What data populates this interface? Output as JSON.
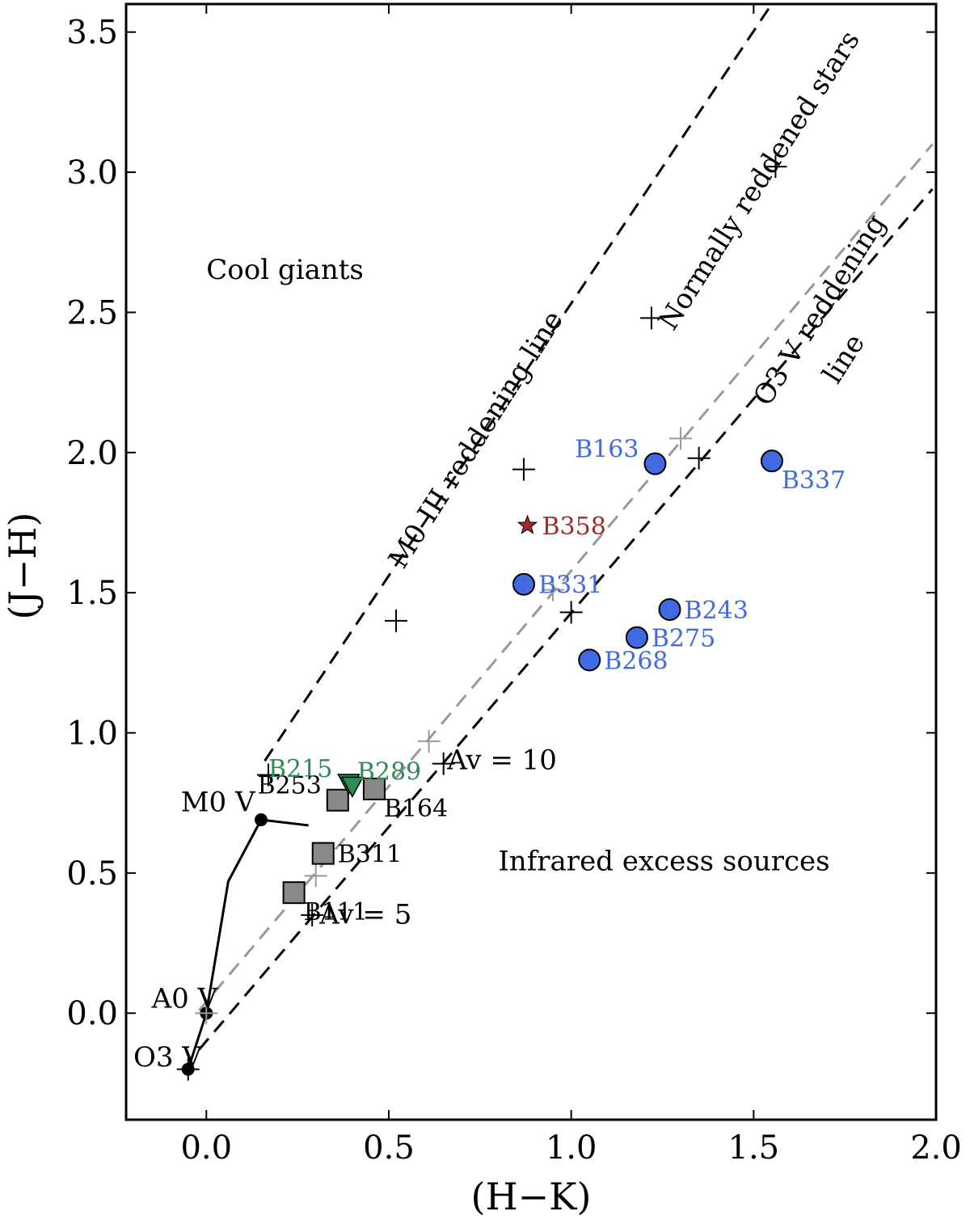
{
  "chart_data": {
    "type": "scatter",
    "title": "",
    "xlabel": "(H−K)",
    "ylabel": "(J−H)",
    "xlim": [
      -0.22,
      2.0
    ],
    "ylim": [
      -0.38,
      3.6
    ],
    "xticks": [
      0.0,
      0.5,
      1.0,
      1.5,
      2.0
    ],
    "xtick_labels": [
      "0.0",
      "0.5",
      "1.0",
      "1.5",
      "2.0"
    ],
    "yticks": [
      0.0,
      0.5,
      1.0,
      1.5,
      2.0,
      2.5,
      3.0,
      3.5
    ],
    "ytick_labels": [
      "0.0",
      "0.5",
      "1.0",
      "1.5",
      "2.0",
      "2.5",
      "3.0",
      "3.5"
    ],
    "colors": {
      "blue": "#4169e1",
      "gray": "#888888",
      "green": "#2e8b57",
      "red": "#a52a2a",
      "grayline": "#999999"
    },
    "main_sequence": [
      [
        -0.05,
        -0.2
      ],
      [
        0.0,
        0.0
      ],
      [
        0.06,
        0.47
      ],
      [
        0.15,
        0.69
      ],
      [
        0.28,
        0.67
      ]
    ],
    "ms_points": [
      {
        "name": "O3 V",
        "x": -0.05,
        "y": -0.2
      },
      {
        "name": "A0 V",
        "x": 0.0,
        "y": 0.0
      },
      {
        "name": "M0 V",
        "x": 0.15,
        "y": 0.69
      }
    ],
    "reddening_lines": [
      {
        "name": "M0 III reddening line",
        "color": "black",
        "x": [
          0.16,
          1.56
        ],
        "y": [
          0.9,
          3.62
        ]
      },
      {
        "name": "A0 V reddening line",
        "color": "gray",
        "x": [
          -0.02,
          1.99
        ],
        "y": [
          0.01,
          3.1
        ]
      },
      {
        "name": "O3 V reddening line",
        "color": "black",
        "x": [
          -0.02,
          1.99
        ],
        "y": [
          -0.13,
          2.94
        ]
      }
    ],
    "av_markers": [
      {
        "color": "black",
        "x": 0.17,
        "y": 0.85
      },
      {
        "color": "black",
        "x": 0.52,
        "y": 1.4
      },
      {
        "color": "black",
        "x": 0.87,
        "y": 1.94
      },
      {
        "color": "black",
        "x": 1.22,
        "y": 2.48
      },
      {
        "color": "black",
        "x": 1.56,
        "y": 3.02
      },
      {
        "color": "gray",
        "x": 0.0,
        "y": 0.0
      },
      {
        "color": "gray",
        "x": 0.3,
        "y": 0.49
      },
      {
        "color": "gray",
        "x": 0.61,
        "y": 0.97
      },
      {
        "color": "gray",
        "x": 0.95,
        "y": 1.51
      },
      {
        "color": "gray",
        "x": 1.3,
        "y": 2.05
      },
      {
        "color": "black",
        "x": -0.05,
        "y": -0.2
      },
      {
        "color": "black",
        "x": 0.29,
        "y": 0.35
      },
      {
        "color": "black",
        "x": 0.65,
        "y": 0.89
      },
      {
        "color": "black",
        "x": 1.0,
        "y": 1.43
      },
      {
        "color": "black",
        "x": 1.35,
        "y": 1.98
      }
    ],
    "series": [
      {
        "name": "Blue circles",
        "marker": "circle",
        "color": "#4169e1",
        "points": [
          {
            "label": "B163",
            "x": 1.23,
            "y": 1.96,
            "label_pos": "upper-left"
          },
          {
            "label": "B337",
            "x": 1.55,
            "y": 1.97,
            "label_pos": "lower-right"
          },
          {
            "label": "B331",
            "x": 0.87,
            "y": 1.53,
            "label_pos": "right"
          },
          {
            "label": "B243",
            "x": 1.27,
            "y": 1.44,
            "label_pos": "right"
          },
          {
            "label": "B275",
            "x": 1.18,
            "y": 1.34,
            "label_pos": "right"
          },
          {
            "label": "B268",
            "x": 1.05,
            "y": 1.26,
            "label_pos": "right"
          }
        ]
      },
      {
        "name": "Gray squares",
        "marker": "square",
        "color": "#888888",
        "points": [
          {
            "label": "B253",
            "x": 0.36,
            "y": 0.76,
            "label_pos": "upper-left"
          },
          {
            "label": "B164",
            "x": 0.46,
            "y": 0.8,
            "label_pos": "lower-right"
          },
          {
            "label": "B311",
            "x": 0.32,
            "y": 0.57,
            "label_pos": "right"
          },
          {
            "label": "B111",
            "x": 0.24,
            "y": 0.43,
            "label_pos": "lower-right"
          }
        ]
      },
      {
        "name": "Green triangles",
        "marker": "triangle-down",
        "color": "#2e8b57",
        "points": [
          {
            "label": "B215",
            "x": 0.39,
            "y": 0.82,
            "label_pos": "upper-left"
          },
          {
            "label": "B289",
            "x": 0.4,
            "y": 0.81,
            "label_pos": "upper-right"
          }
        ]
      },
      {
        "name": "Red star",
        "marker": "star",
        "color": "#a52a2a",
        "points": [
          {
            "label": "B358",
            "x": 0.88,
            "y": 1.74,
            "label_pos": "right"
          }
        ]
      }
    ],
    "annotations": [
      {
        "text": "Cool giants",
        "x": 0.0,
        "y": 2.62,
        "rotation": 0
      },
      {
        "text": "Infrared excess sources",
        "x": 0.8,
        "y": 0.51,
        "rotation": 0
      },
      {
        "text": "Av = 10",
        "x": 0.66,
        "y": 0.87,
        "rotation": 0
      },
      {
        "text": "Av = 5",
        "x": 0.31,
        "y": 0.32,
        "rotation": 0
      },
      {
        "text": "M0 V",
        "x": -0.07,
        "y": 0.72,
        "rotation": 0
      },
      {
        "text": "A0 V",
        "x": -0.15,
        "y": 0.02,
        "rotation": 0
      },
      {
        "text": "O3 V",
        "x": -0.2,
        "y": -0.19,
        "rotation": 0
      },
      {
        "text": "M0 III reddening line",
        "x": 0.54,
        "y": 1.58,
        "rotation": -57.5
      },
      {
        "text": "Normally reddened stars",
        "x": 1.28,
        "y": 2.43,
        "rotation": -57.5
      },
      {
        "text": "O3 V reddening",
        "x": 1.54,
        "y": 2.16,
        "rotation": -57.5
      },
      {
        "text": "line",
        "x": 1.73,
        "y": 2.24,
        "rotation": -57.5
      }
    ]
  }
}
